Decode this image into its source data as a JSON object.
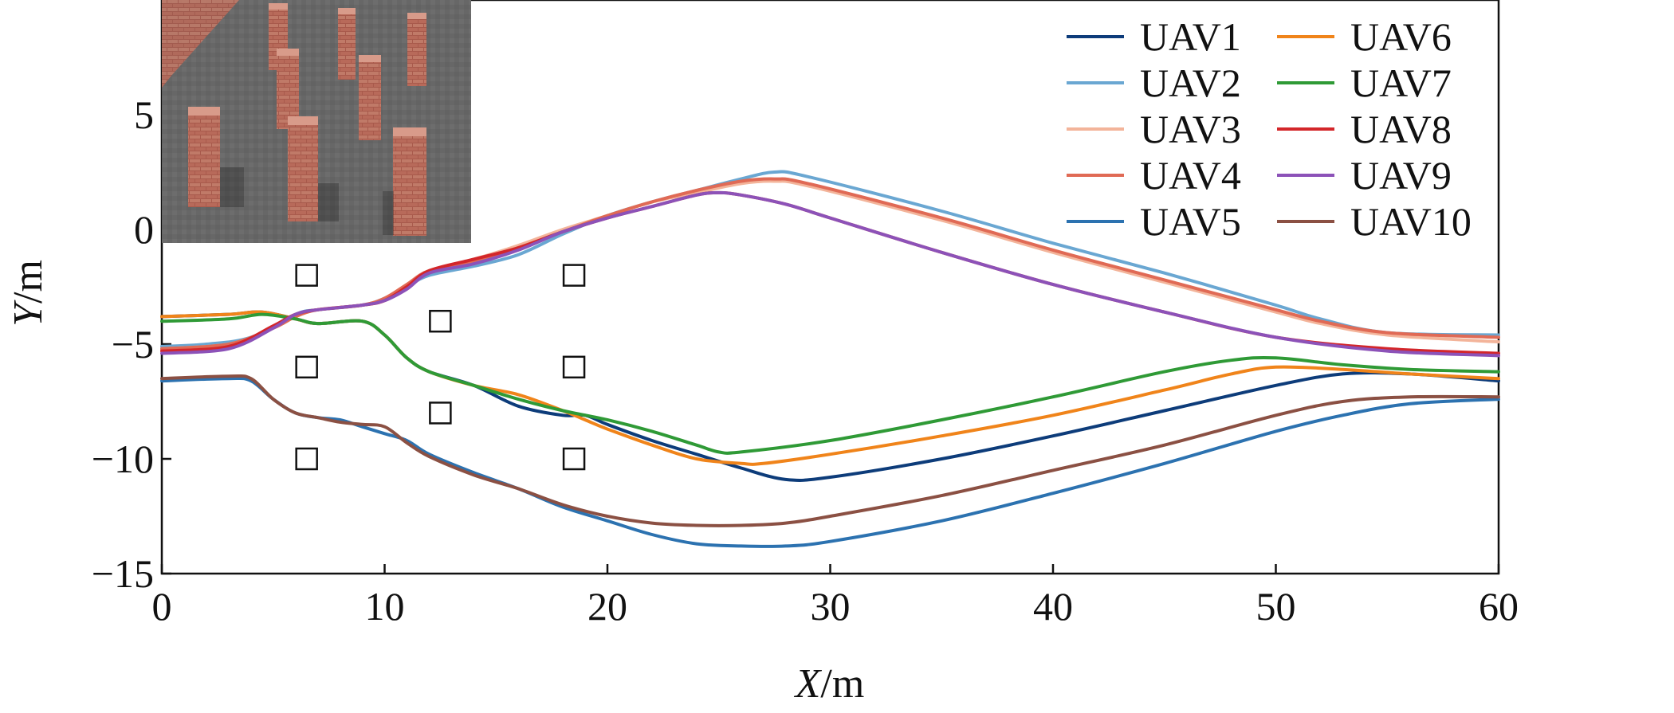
{
  "chart_data": {
    "type": "line",
    "xlabel_var": "X",
    "xlabel_unit": "/m",
    "ylabel_var": "Y",
    "ylabel_unit": "/m",
    "xlim": [
      0,
      60
    ],
    "ylim": [
      -15,
      10
    ],
    "xticks": [
      0,
      10,
      20,
      30,
      40,
      50,
      60
    ],
    "yticks": [
      -15,
      -10,
      -5,
      0,
      5
    ],
    "ytick_labels": [
      "−15",
      "−10",
      "−5",
      "0",
      "5"
    ],
    "grid": false,
    "legend_position": "top-right",
    "inset": "3D scene: brick pillar obstacles",
    "obstacles": [
      {
        "x": 6.5,
        "y": -2
      },
      {
        "x": 6.5,
        "y": -6
      },
      {
        "x": 6.5,
        "y": -10
      },
      {
        "x": 12.5,
        "y": -4
      },
      {
        "x": 12.5,
        "y": -8
      },
      {
        "x": 18.5,
        "y": -2
      },
      {
        "x": 18.5,
        "y": -6
      },
      {
        "x": 18.5,
        "y": -10
      }
    ],
    "series": [
      {
        "name": "UAV1",
        "color": "#0d3c7a",
        "points": [
          [
            0,
            -3.8
          ],
          [
            3,
            -3.7
          ],
          [
            4.5,
            -3.6
          ],
          [
            6,
            -3.9
          ],
          [
            7,
            -4.1
          ],
          [
            9,
            -4.0
          ],
          [
            10,
            -4.6
          ],
          [
            11,
            -5.6
          ],
          [
            12,
            -6.2
          ],
          [
            14,
            -6.8
          ],
          [
            16,
            -7.7
          ],
          [
            18,
            -8.1
          ],
          [
            19,
            -8.1
          ],
          [
            20,
            -8.5
          ],
          [
            22,
            -9.2
          ],
          [
            24,
            -9.8
          ],
          [
            26,
            -10.4
          ],
          [
            28,
            -10.9
          ],
          [
            30,
            -10.8
          ],
          [
            35,
            -10.0
          ],
          [
            40,
            -9.0
          ],
          [
            45,
            -7.9
          ],
          [
            50,
            -6.8
          ],
          [
            53,
            -6.3
          ],
          [
            56,
            -6.3
          ],
          [
            60,
            -6.6
          ]
        ]
      },
      {
        "name": "UAV2",
        "color": "#6aa7d2",
        "points": [
          [
            0,
            -5.1
          ],
          [
            2,
            -5.0
          ],
          [
            4,
            -4.7
          ],
          [
            6,
            -3.7
          ],
          [
            7,
            -3.5
          ],
          [
            9,
            -3.3
          ],
          [
            10,
            -3.0
          ],
          [
            11,
            -2.5
          ],
          [
            12,
            -2.0
          ],
          [
            14,
            -1.6
          ],
          [
            16,
            -1.1
          ],
          [
            18,
            -0.2
          ],
          [
            20,
            0.6
          ],
          [
            22,
            1.2
          ],
          [
            24,
            1.7
          ],
          [
            26,
            2.2
          ],
          [
            27.5,
            2.5
          ],
          [
            29,
            2.3
          ],
          [
            35,
            0.8
          ],
          [
            40,
            -0.6
          ],
          [
            45,
            -1.9
          ],
          [
            50,
            -3.3
          ],
          [
            52,
            -3.9
          ],
          [
            55,
            -4.5
          ],
          [
            60,
            -4.6
          ]
        ]
      },
      {
        "name": "UAV3",
        "color": "#f3b49a",
        "points": [
          [
            0,
            -5.2
          ],
          [
            3,
            -5.0
          ],
          [
            5,
            -4.3
          ],
          [
            6,
            -3.8
          ],
          [
            7,
            -3.5
          ],
          [
            9,
            -3.3
          ],
          [
            10,
            -3.0
          ],
          [
            11,
            -2.4
          ],
          [
            12,
            -1.8
          ],
          [
            14,
            -1.3
          ],
          [
            16,
            -0.7
          ],
          [
            18,
            0.0
          ],
          [
            20,
            0.6
          ],
          [
            22,
            1.2
          ],
          [
            24,
            1.6
          ],
          [
            26,
            2.0
          ],
          [
            27.5,
            2.1
          ],
          [
            29,
            1.9
          ],
          [
            35,
            0.4
          ],
          [
            40,
            -1.0
          ],
          [
            45,
            -2.3
          ],
          [
            50,
            -3.6
          ],
          [
            52,
            -4.1
          ],
          [
            55,
            -4.6
          ],
          [
            60,
            -4.9
          ]
        ]
      },
      {
        "name": "UAV4",
        "color": "#e06a55",
        "points": [
          [
            0,
            -5.2
          ],
          [
            3,
            -5.0
          ],
          [
            5,
            -4.3
          ],
          [
            6,
            -3.8
          ],
          [
            7,
            -3.5
          ],
          [
            9,
            -3.3
          ],
          [
            10,
            -3.0
          ],
          [
            11,
            -2.4
          ],
          [
            12,
            -1.8
          ],
          [
            14,
            -1.4
          ],
          [
            16,
            -0.8
          ],
          [
            18,
            -0.1
          ],
          [
            20,
            0.6
          ],
          [
            22,
            1.2
          ],
          [
            24,
            1.7
          ],
          [
            26,
            2.1
          ],
          [
            27.5,
            2.2
          ],
          [
            29,
            2.0
          ],
          [
            35,
            0.5
          ],
          [
            40,
            -0.9
          ],
          [
            45,
            -2.2
          ],
          [
            50,
            -3.5
          ],
          [
            52,
            -4.0
          ],
          [
            55,
            -4.5
          ],
          [
            60,
            -4.7
          ]
        ]
      },
      {
        "name": "UAV5",
        "color": "#2c72b0",
        "points": [
          [
            0,
            -6.6
          ],
          [
            3,
            -6.5
          ],
          [
            4,
            -6.6
          ],
          [
            5,
            -7.4
          ],
          [
            6,
            -8.0
          ],
          [
            7,
            -8.2
          ],
          [
            8,
            -8.3
          ],
          [
            9,
            -8.6
          ],
          [
            10,
            -8.9
          ],
          [
            11,
            -9.2
          ],
          [
            12,
            -9.8
          ],
          [
            14,
            -10.6
          ],
          [
            16,
            -11.3
          ],
          [
            18,
            -12.1
          ],
          [
            20,
            -12.7
          ],
          [
            22,
            -13.3
          ],
          [
            24,
            -13.7
          ],
          [
            26,
            -13.8
          ],
          [
            28,
            -13.8
          ],
          [
            30,
            -13.6
          ],
          [
            35,
            -12.7
          ],
          [
            40,
            -11.5
          ],
          [
            45,
            -10.2
          ],
          [
            50,
            -8.8
          ],
          [
            53,
            -8.1
          ],
          [
            56,
            -7.6
          ],
          [
            60,
            -7.4
          ]
        ]
      },
      {
        "name": "UAV6",
        "color": "#f0841a",
        "points": [
          [
            0,
            -3.8
          ],
          [
            3,
            -3.7
          ],
          [
            4.5,
            -3.6
          ],
          [
            6,
            -3.9
          ],
          [
            7,
            -4.1
          ],
          [
            9,
            -4.0
          ],
          [
            10,
            -4.6
          ],
          [
            11,
            -5.6
          ],
          [
            12,
            -6.2
          ],
          [
            14,
            -6.8
          ],
          [
            16,
            -7.2
          ],
          [
            18,
            -7.9
          ],
          [
            19,
            -8.3
          ],
          [
            20,
            -8.7
          ],
          [
            22,
            -9.4
          ],
          [
            24,
            -10.0
          ],
          [
            26,
            -10.2
          ],
          [
            27,
            -10.2
          ],
          [
            30,
            -9.8
          ],
          [
            35,
            -9.0
          ],
          [
            40,
            -8.1
          ],
          [
            45,
            -7.0
          ],
          [
            48,
            -6.3
          ],
          [
            50,
            -6.0
          ],
          [
            53,
            -6.1
          ],
          [
            56,
            -6.3
          ],
          [
            60,
            -6.5
          ]
        ]
      },
      {
        "name": "UAV7",
        "color": "#2f9a36",
        "points": [
          [
            0,
            -4.0
          ],
          [
            3,
            -3.9
          ],
          [
            4.5,
            -3.7
          ],
          [
            6,
            -3.9
          ],
          [
            7,
            -4.1
          ],
          [
            9,
            -4.0
          ],
          [
            10,
            -4.6
          ],
          [
            11,
            -5.6
          ],
          [
            12,
            -6.2
          ],
          [
            14,
            -6.8
          ],
          [
            16,
            -7.4
          ],
          [
            18,
            -7.9
          ],
          [
            20,
            -8.3
          ],
          [
            22,
            -8.8
          ],
          [
            24,
            -9.4
          ],
          [
            25,
            -9.7
          ],
          [
            26,
            -9.7
          ],
          [
            30,
            -9.2
          ],
          [
            35,
            -8.3
          ],
          [
            40,
            -7.3
          ],
          [
            45,
            -6.2
          ],
          [
            48,
            -5.7
          ],
          [
            50,
            -5.6
          ],
          [
            53,
            -5.9
          ],
          [
            56,
            -6.1
          ],
          [
            60,
            -6.2
          ]
        ]
      },
      {
        "name": "UAV8",
        "color": "#d3262a",
        "points": [
          [
            0,
            -5.3
          ],
          [
            3,
            -5.1
          ],
          [
            5,
            -4.2
          ],
          [
            6,
            -3.7
          ],
          [
            7,
            -3.5
          ],
          [
            9,
            -3.3
          ],
          [
            10,
            -3.1
          ],
          [
            11,
            -2.5
          ],
          [
            12,
            -1.8
          ],
          [
            14,
            -1.3
          ],
          [
            16,
            -0.8
          ],
          [
            18,
            -0.1
          ],
          [
            20,
            0.5
          ],
          [
            22,
            1.0
          ],
          [
            24,
            1.5
          ],
          [
            25,
            1.6
          ],
          [
            26,
            1.5
          ],
          [
            28,
            1.1
          ],
          [
            30,
            0.5
          ],
          [
            35,
            -1.0
          ],
          [
            40,
            -2.4
          ],
          [
            45,
            -3.6
          ],
          [
            50,
            -4.7
          ],
          [
            55,
            -5.2
          ],
          [
            60,
            -5.4
          ]
        ]
      },
      {
        "name": "UAV9",
        "color": "#8c52b8",
        "points": [
          [
            0,
            -5.4
          ],
          [
            3,
            -5.2
          ],
          [
            5,
            -4.3
          ],
          [
            6,
            -3.7
          ],
          [
            7,
            -3.5
          ],
          [
            9,
            -3.3
          ],
          [
            10,
            -3.1
          ],
          [
            11,
            -2.6
          ],
          [
            12,
            -1.9
          ],
          [
            14,
            -1.5
          ],
          [
            16,
            -0.9
          ],
          [
            18,
            -0.1
          ],
          [
            20,
            0.5
          ],
          [
            22,
            1.0
          ],
          [
            24,
            1.5
          ],
          [
            25,
            1.6
          ],
          [
            26,
            1.5
          ],
          [
            28,
            1.1
          ],
          [
            30,
            0.5
          ],
          [
            35,
            -1.0
          ],
          [
            40,
            -2.4
          ],
          [
            45,
            -3.6
          ],
          [
            50,
            -4.7
          ],
          [
            55,
            -5.3
          ],
          [
            60,
            -5.5
          ]
        ]
      },
      {
        "name": "UAV10",
        "color": "#8b5043",
        "points": [
          [
            0,
            -6.5
          ],
          [
            3,
            -6.4
          ],
          [
            4,
            -6.5
          ],
          [
            5,
            -7.4
          ],
          [
            6,
            -8.0
          ],
          [
            7,
            -8.2
          ],
          [
            8,
            -8.4
          ],
          [
            9,
            -8.5
          ],
          [
            10,
            -8.6
          ],
          [
            11,
            -9.3
          ],
          [
            12,
            -9.9
          ],
          [
            14,
            -10.7
          ],
          [
            16,
            -11.3
          ],
          [
            18,
            -12.0
          ],
          [
            20,
            -12.5
          ],
          [
            22,
            -12.8
          ],
          [
            24,
            -12.9
          ],
          [
            26,
            -12.9
          ],
          [
            28,
            -12.8
          ],
          [
            30,
            -12.5
          ],
          [
            35,
            -11.6
          ],
          [
            40,
            -10.5
          ],
          [
            45,
            -9.4
          ],
          [
            50,
            -8.1
          ],
          [
            53,
            -7.5
          ],
          [
            56,
            -7.3
          ],
          [
            60,
            -7.3
          ]
        ]
      }
    ]
  }
}
